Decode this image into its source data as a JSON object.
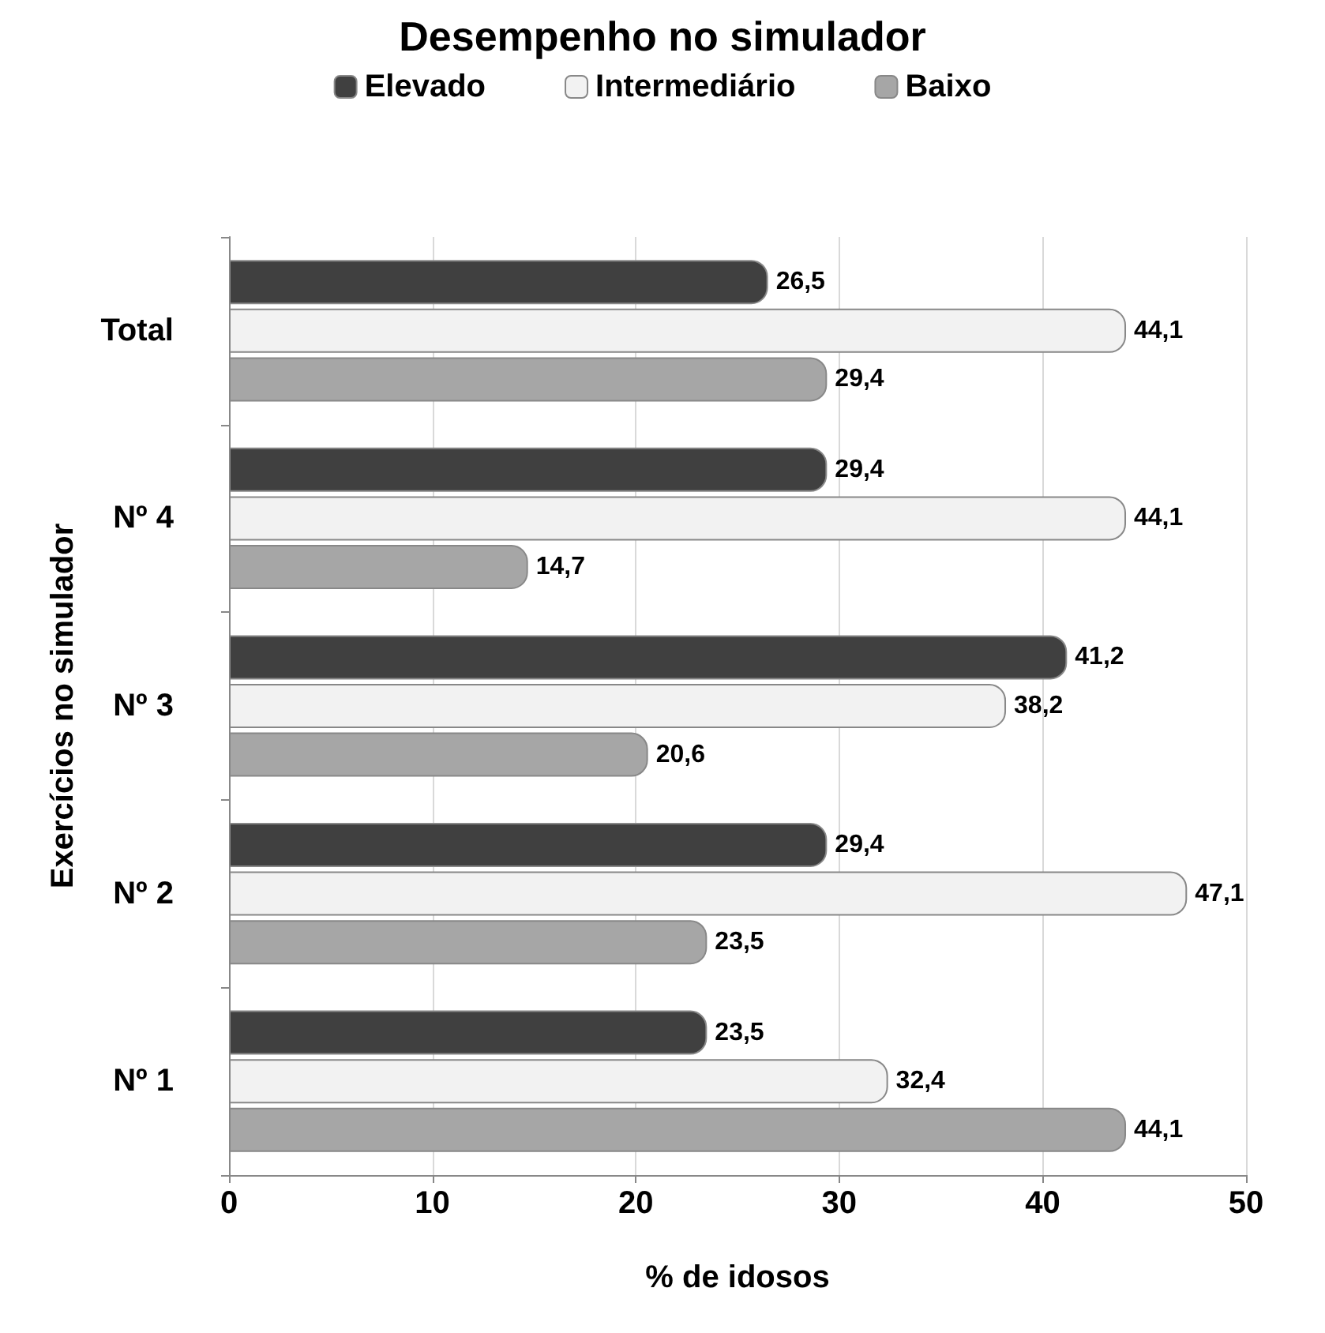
{
  "chart_data": {
    "type": "bar",
    "orientation": "horizontal",
    "title": "Desempenho no simulador",
    "xlabel": "% de idosos",
    "ylabel": "Exercícios no simulador",
    "categories": [
      "Total",
      "Nº 4",
      "Nº 3",
      "Nº 2",
      "Nº 1"
    ],
    "series": [
      {
        "name": "Elevado",
        "color": "#404040",
        "values": [
          26.5,
          29.4,
          41.2,
          29.4,
          23.5
        ],
        "value_labels": [
          "26,5",
          "29,4",
          "41,2",
          "29,4",
          "23,5"
        ]
      },
      {
        "name": "Intermediário",
        "color": "#f2f2f2",
        "values": [
          44.1,
          44.1,
          38.2,
          47.1,
          32.4
        ],
        "value_labels": [
          "44,1",
          "44,1",
          "38,2",
          "47,1",
          "32,4"
        ]
      },
      {
        "name": "Baixo",
        "color": "#a6a6a6",
        "values": [
          29.4,
          14.7,
          20.6,
          23.5,
          44.1
        ],
        "value_labels": [
          "29,4",
          "14,7",
          "20,6",
          "23,5",
          "44,1"
        ]
      }
    ],
    "xlim": [
      0,
      50
    ],
    "xticks": [
      0,
      10,
      20,
      30,
      40,
      50
    ],
    "grid": "x",
    "legend": "top"
  }
}
